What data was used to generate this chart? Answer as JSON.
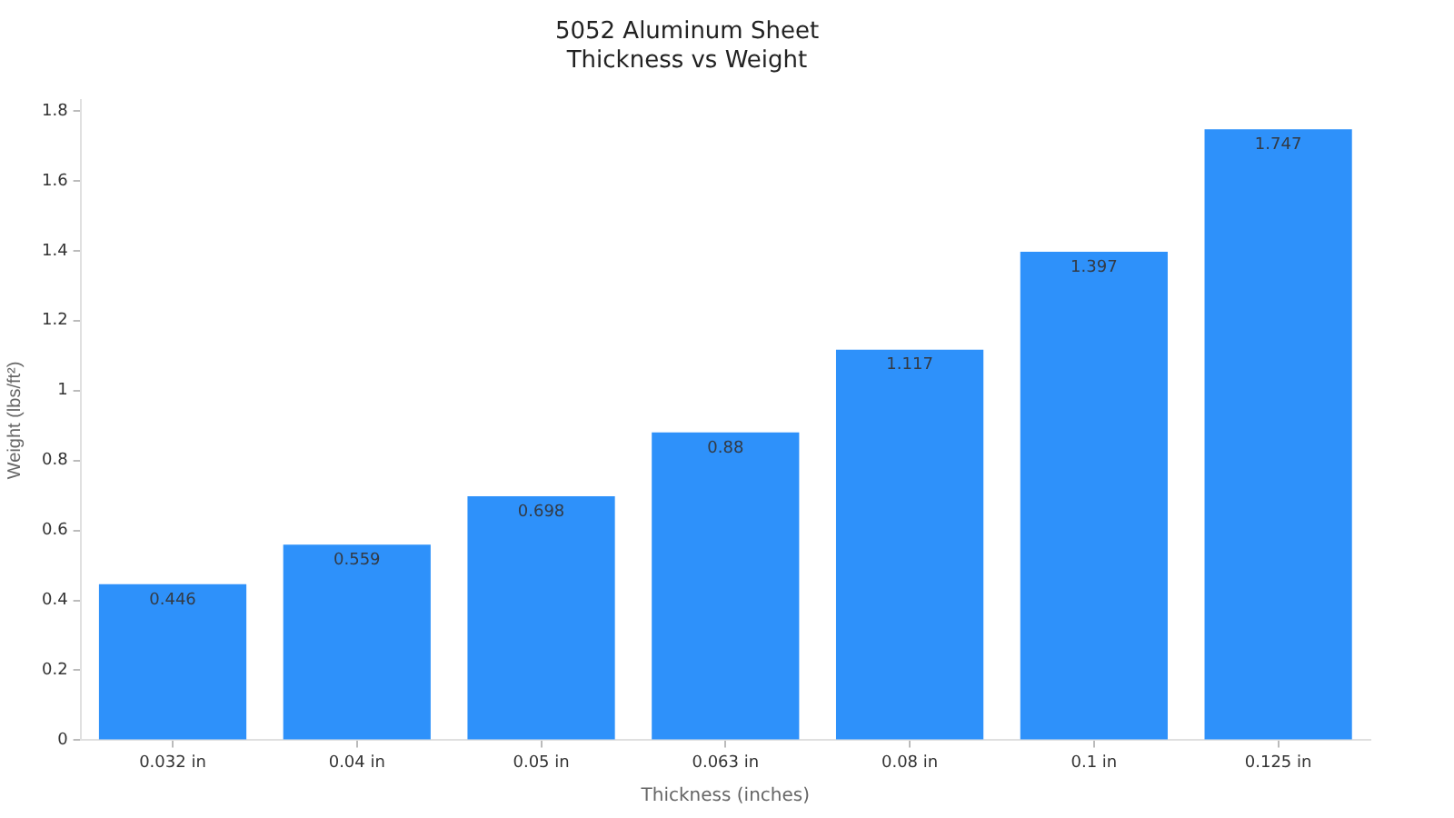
{
  "chart_data": {
    "type": "bar",
    "title": "5052 Aluminum Sheet\nThickness vs Weight",
    "xlabel": "Thickness (inches)",
    "ylabel": "Weight (lbs/ft²)",
    "categories": [
      "0.032 in",
      "0.04 in",
      "0.05 in",
      "0.063 in",
      "0.08 in",
      "0.1 in",
      "0.125 in"
    ],
    "values": [
      0.446,
      0.559,
      0.698,
      0.88,
      1.117,
      1.397,
      1.747
    ],
    "color": "#2e91fa",
    "ylim": [
      0,
      1.83
    ],
    "yticks": [
      0,
      0.2,
      0.4,
      0.6,
      0.8,
      1,
      1.2,
      1.4,
      1.6,
      1.8
    ],
    "grid": false,
    "legend": false,
    "data_labels": true
  }
}
